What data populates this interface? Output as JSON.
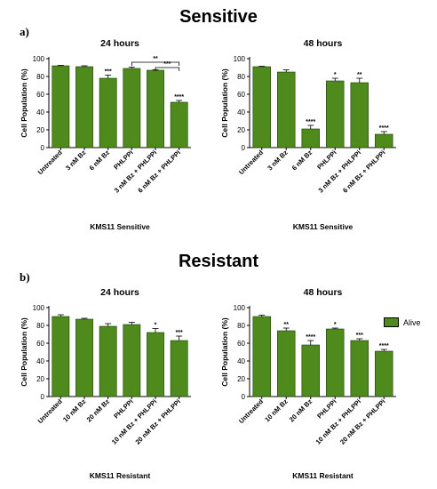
{
  "sections": {
    "top_title": "Sensitive",
    "bottom_title": "Resistant",
    "top_label": "a)",
    "bottom_label": "b)"
  },
  "legend": {
    "label": "Alive",
    "color": "#4e8b1c"
  },
  "colors": {
    "bar": "#4e8b1c"
  },
  "chart_data": [
    {
      "type": "bar",
      "title": "24 hours",
      "xlabel": "KMS11 Sensitive",
      "ylabel": "Cell Population (%)",
      "ylim": [
        0,
        100
      ],
      "yticks": [
        0,
        20,
        40,
        60,
        80,
        100
      ],
      "categories": [
        "Untreated",
        "3 nM Bz",
        "6 nM Bz",
        "PHLPPi",
        "3 nM Bz + PHLPPi",
        "6 nM Bz + PHLPPi"
      ],
      "values": [
        92,
        91,
        78,
        89,
        87,
        51
      ],
      "errors": [
        0.5,
        1,
        3.5,
        1.5,
        0.5,
        2
      ],
      "annotations": [
        "",
        "",
        "***",
        "",
        "",
        "****"
      ],
      "brackets": [
        {
          "from": 3,
          "to": 5,
          "y": 96,
          "label": "**"
        },
        {
          "from": 4,
          "to": 5,
          "y": 90,
          "label": "***"
        }
      ]
    },
    {
      "type": "bar",
      "title": "48 hours",
      "xlabel": "KMS11 Sensitive",
      "ylabel": "Cell Population (%)",
      "ylim": [
        0,
        100
      ],
      "yticks": [
        0,
        20,
        40,
        60,
        80,
        100
      ],
      "categories": [
        "Untreated",
        "3 nM Bz",
        "6 nM Bz",
        "PHLPPi",
        "3 nM Bz + PHLPPi",
        "6 nM Bz + PHLPPi"
      ],
      "values": [
        91,
        85,
        21,
        75,
        73,
        15
      ],
      "errors": [
        0.5,
        2.5,
        4,
        3,
        5,
        3
      ],
      "annotations": [
        "",
        "",
        "****",
        "*",
        "**",
        "****"
      ],
      "brackets": []
    },
    {
      "type": "bar",
      "title": "24 hours",
      "xlabel": "KMS11 Resistant",
      "ylabel": "Cell Population (%)",
      "ylim": [
        0,
        100
      ],
      "yticks": [
        0,
        20,
        40,
        60,
        80,
        100
      ],
      "categories": [
        "Untreated",
        "10 nM Bz",
        "20 nM Bz",
        "PHLPPi",
        "10 nM Bz + PHLPPi",
        "20 nM Bz + PHLPPi"
      ],
      "values": [
        90,
        87,
        79,
        81,
        72,
        63
      ],
      "errors": [
        2,
        1,
        3,
        2.5,
        4.5,
        5
      ],
      "annotations": [
        "",
        "",
        "",
        "",
        "*",
        "***"
      ],
      "brackets": []
    },
    {
      "type": "bar",
      "title": "48 hours",
      "xlabel": "KMS11 Resistant",
      "ylabel": "Cell Population (%)",
      "ylim": [
        0,
        100
      ],
      "yticks": [
        0,
        20,
        40,
        60,
        80,
        100
      ],
      "categories": [
        "Untreated",
        "10 nM Bz",
        "20 nM Bz",
        "PHLPPi",
        "10 nM Bz + PHLPPi",
        "20 nM Bz + PHLPPi"
      ],
      "values": [
        90,
        74,
        58,
        76,
        63,
        51
      ],
      "errors": [
        1.5,
        3,
        5,
        1,
        2,
        2
      ],
      "annotations": [
        "",
        "**",
        "****",
        "*",
        "***",
        "****"
      ],
      "brackets": []
    }
  ]
}
